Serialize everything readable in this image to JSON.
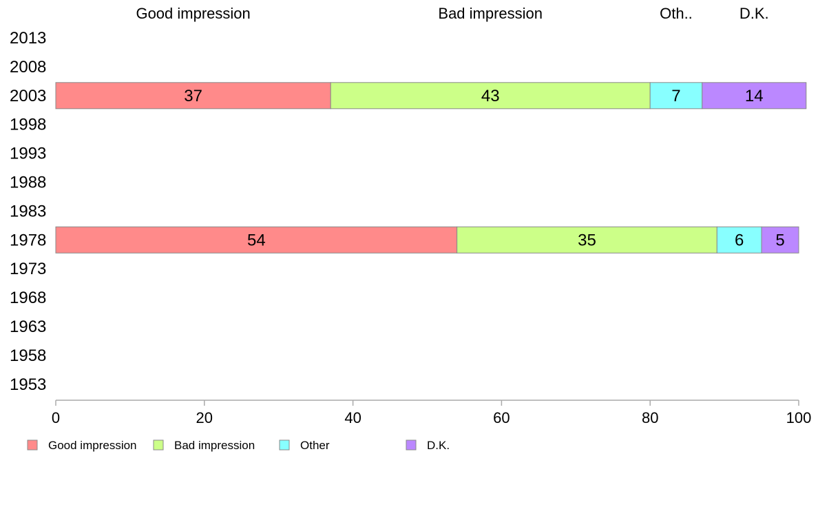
{
  "chart_data": {
    "type": "bar",
    "orientation": "horizontal",
    "stacked": true,
    "percent": true,
    "categories": [
      "1953",
      "1958",
      "1963",
      "1968",
      "1973",
      "1978",
      "1983",
      "1988",
      "1993",
      "1998",
      "2003",
      "2008",
      "2013"
    ],
    "series": [
      {
        "name": "Good impression",
        "values": [
          null,
          null,
          null,
          null,
          null,
          54,
          null,
          null,
          null,
          null,
          37,
          null,
          null
        ]
      },
      {
        "name": "Bad impression",
        "values": [
          null,
          null,
          null,
          null,
          null,
          35,
          null,
          null,
          null,
          null,
          43,
          null,
          null
        ]
      },
      {
        "name": "Other",
        "values": [
          null,
          null,
          null,
          null,
          null,
          6,
          null,
          null,
          null,
          null,
          7,
          null,
          null
        ]
      },
      {
        "name": "D.K.",
        "values": [
          null,
          null,
          null,
          null,
          null,
          5,
          null,
          null,
          null,
          null,
          14,
          null,
          null
        ]
      }
    ],
    "top_labels": [
      "Good impression",
      "Bad impression",
      "Oth..",
      "D.K."
    ],
    "xlim": [
      0,
      100
    ],
    "xticks": [
      0,
      20,
      40,
      60,
      80,
      100
    ],
    "grid": false,
    "legend_position": "bottom-left",
    "colors": [
      "#ff8a8a",
      "#ccff88",
      "#88ffff",
      "#bb88ff"
    ],
    "border_color": "#888888",
    "axis_color": "#aaaaaa"
  }
}
